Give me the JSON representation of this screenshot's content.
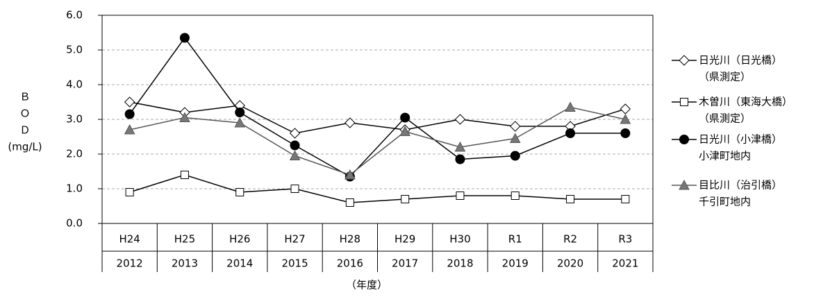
{
  "chart_data": {
    "type": "line",
    "y_label_lines": [
      "Ｂ",
      "Ｏ",
      "Ｄ",
      "(mg/L)"
    ],
    "x_label": "（年度）",
    "categories": [
      "H24",
      "H25",
      "H26",
      "H27",
      "H28",
      "H29",
      "H30",
      "R1",
      "R2",
      "R3"
    ],
    "category_years": [
      "2012",
      "2013",
      "2014",
      "2015",
      "2016",
      "2017",
      "2018",
      "2019",
      "2020",
      "2021"
    ],
    "ylim": [
      0,
      6
    ],
    "yticks": [
      {
        "value": 0,
        "label": "0.0"
      },
      {
        "value": 1,
        "label": "1.0"
      },
      {
        "value": 2,
        "label": "2.0"
      },
      {
        "value": 3,
        "label": "3.0"
      },
      {
        "value": 4,
        "label": "4.0"
      },
      {
        "value": 5,
        "label": "5.0"
      },
      {
        "value": 6,
        "label": "6.0"
      }
    ],
    "grid": true,
    "legend": "right",
    "series": [
      {
        "name": "日光川（日光橋）",
        "note": "（県測定）",
        "color": "#000000",
        "marker": "diamond",
        "marker_fill": "#ffffff",
        "values": [
          3.5,
          3.2,
          3.4,
          2.6,
          2.9,
          2.7,
          3.0,
          2.8,
          2.8,
          3.3
        ]
      },
      {
        "name": "木曽川（東海大橋）",
        "note": "（県測定）",
        "color": "#000000",
        "marker": "square",
        "marker_fill": "#ffffff",
        "values": [
          0.9,
          1.4,
          0.9,
          1.0,
          0.6,
          0.7,
          0.8,
          0.8,
          0.7,
          0.7
        ]
      },
      {
        "name": "日光川（小津橋）",
        "note": "小津町地内",
        "color": "#000000",
        "marker": "circle",
        "marker_fill": "#000000",
        "values": [
          3.15,
          5.35,
          3.2,
          2.25,
          1.35,
          3.05,
          1.85,
          1.95,
          2.6,
          2.6
        ]
      },
      {
        "name": "目比川（治引橋）",
        "note": "千引町地内",
        "color": "#555555",
        "marker": "triangle",
        "marker_fill": "#777777",
        "values": [
          2.7,
          3.05,
          2.9,
          1.95,
          1.4,
          2.65,
          2.2,
          2.45,
          3.35,
          3.0
        ]
      }
    ]
  }
}
